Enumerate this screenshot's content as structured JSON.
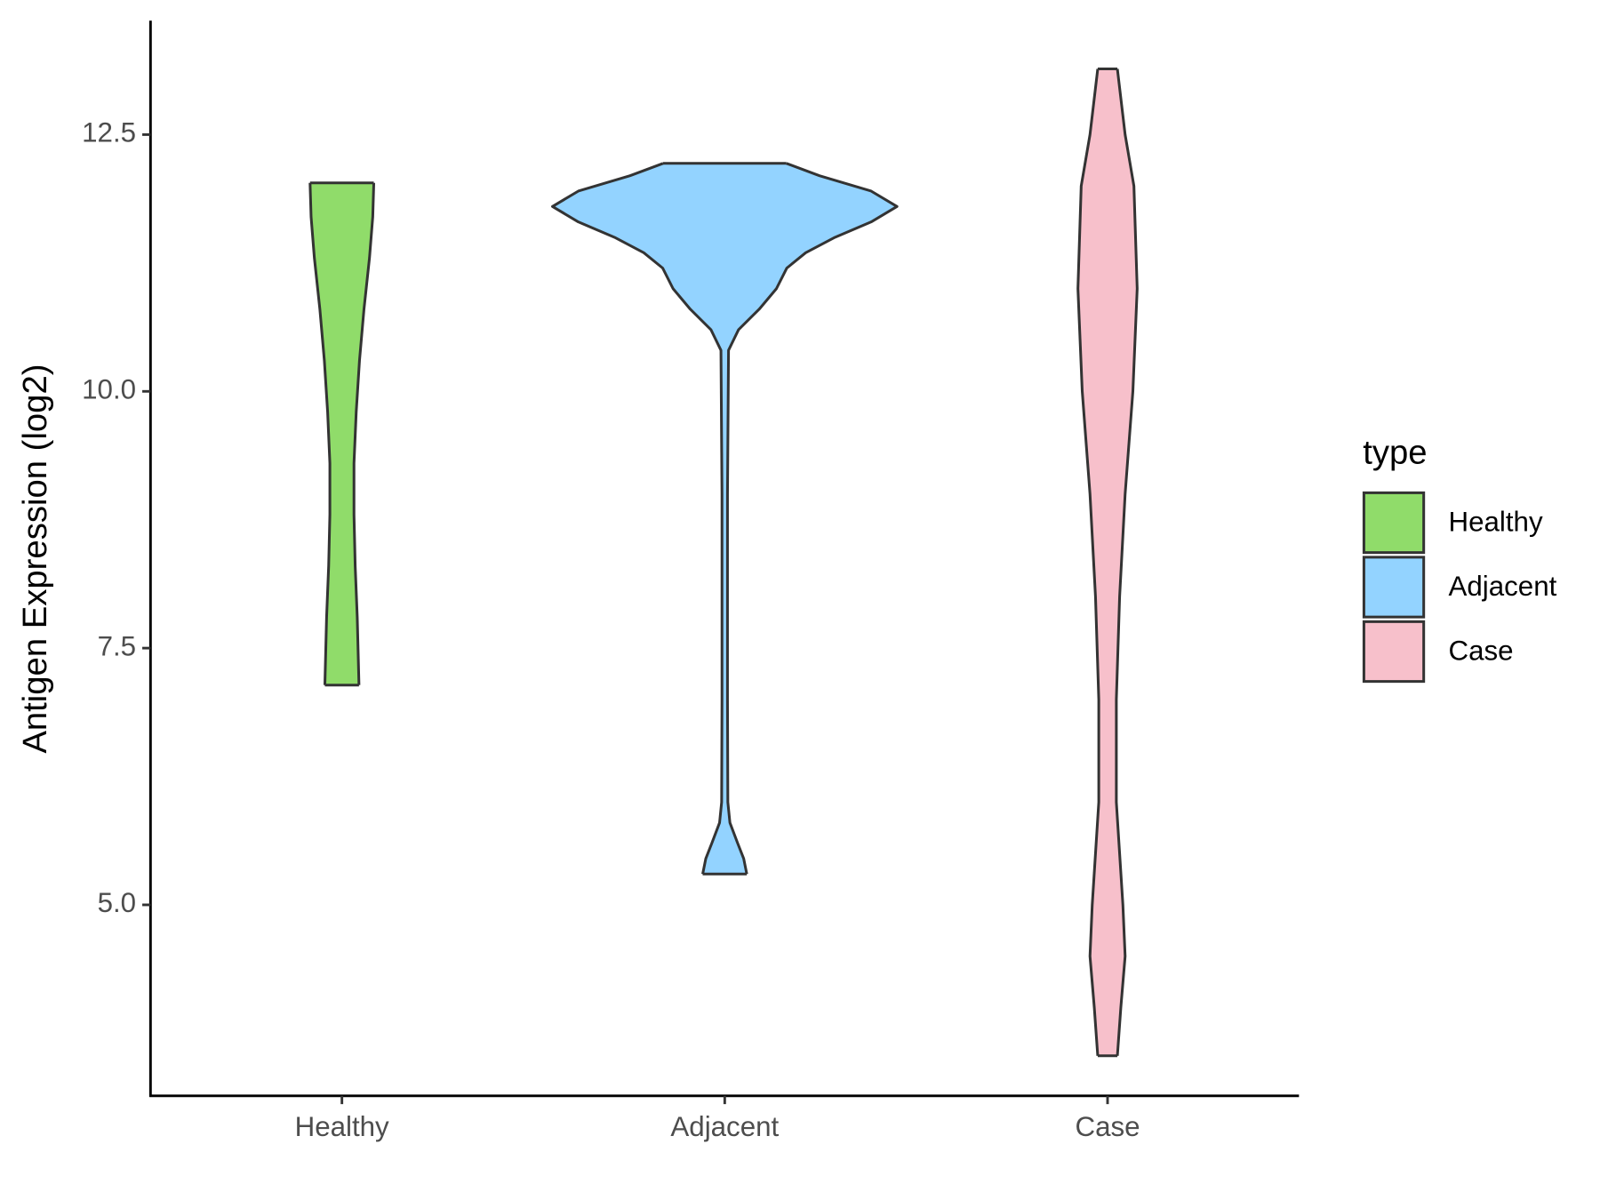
{
  "chart_data": {
    "type": "violin",
    "y_label": "Antigen Expression (log2)",
    "categories": [
      "Healthy",
      "Adjacent",
      "Case"
    ],
    "ylim": [
      3.14,
      13.61
    ],
    "yticks": [
      {
        "value": 5,
        "label": "5.0"
      },
      {
        "value": 7.5,
        "label": "7.5"
      },
      {
        "value": 10,
        "label": "10.0"
      },
      {
        "value": 12.5,
        "label": "12.5"
      }
    ],
    "legend_title": "type",
    "legend_position": "right",
    "series": [
      {
        "name": "Healthy",
        "color": "#90dc6a",
        "y": [
          12.03,
          11.7,
          11.3,
          10.8,
          10.3,
          9.8,
          9.3,
          8.8,
          8.3,
          7.8,
          7.14
        ],
        "density": [
          0.185,
          0.179,
          0.16,
          0.128,
          0.102,
          0.083,
          0.07,
          0.07,
          0.077,
          0.089,
          0.099
        ]
      },
      {
        "name": "Adjacent",
        "color": "#93d3ff",
        "y": [
          12.22,
          12.1,
          11.95,
          11.8,
          11.65,
          11.5,
          11.35,
          11.2,
          11.0,
          10.8,
          10.6,
          10.4,
          9.0,
          7.0,
          6.0,
          5.8,
          5.6,
          5.45,
          5.3
        ],
        "density": [
          0.358,
          0.55,
          0.85,
          1.0,
          0.85,
          0.64,
          0.47,
          0.36,
          0.3,
          0.2,
          0.08,
          0.022,
          0.016,
          0.016,
          0.018,
          0.03,
          0.075,
          0.11,
          0.128
        ]
      },
      {
        "name": "Case",
        "color": "#f7c0cb",
        "y": [
          13.14,
          12.5,
          12.0,
          11.0,
          10.0,
          9.0,
          8.0,
          7.0,
          6.0,
          5.0,
          4.5,
          4.0,
          3.53
        ],
        "density": [
          0.057,
          0.102,
          0.153,
          0.172,
          0.147,
          0.102,
          0.07,
          0.051,
          0.051,
          0.089,
          0.102,
          0.077,
          0.057
        ]
      }
    ]
  }
}
